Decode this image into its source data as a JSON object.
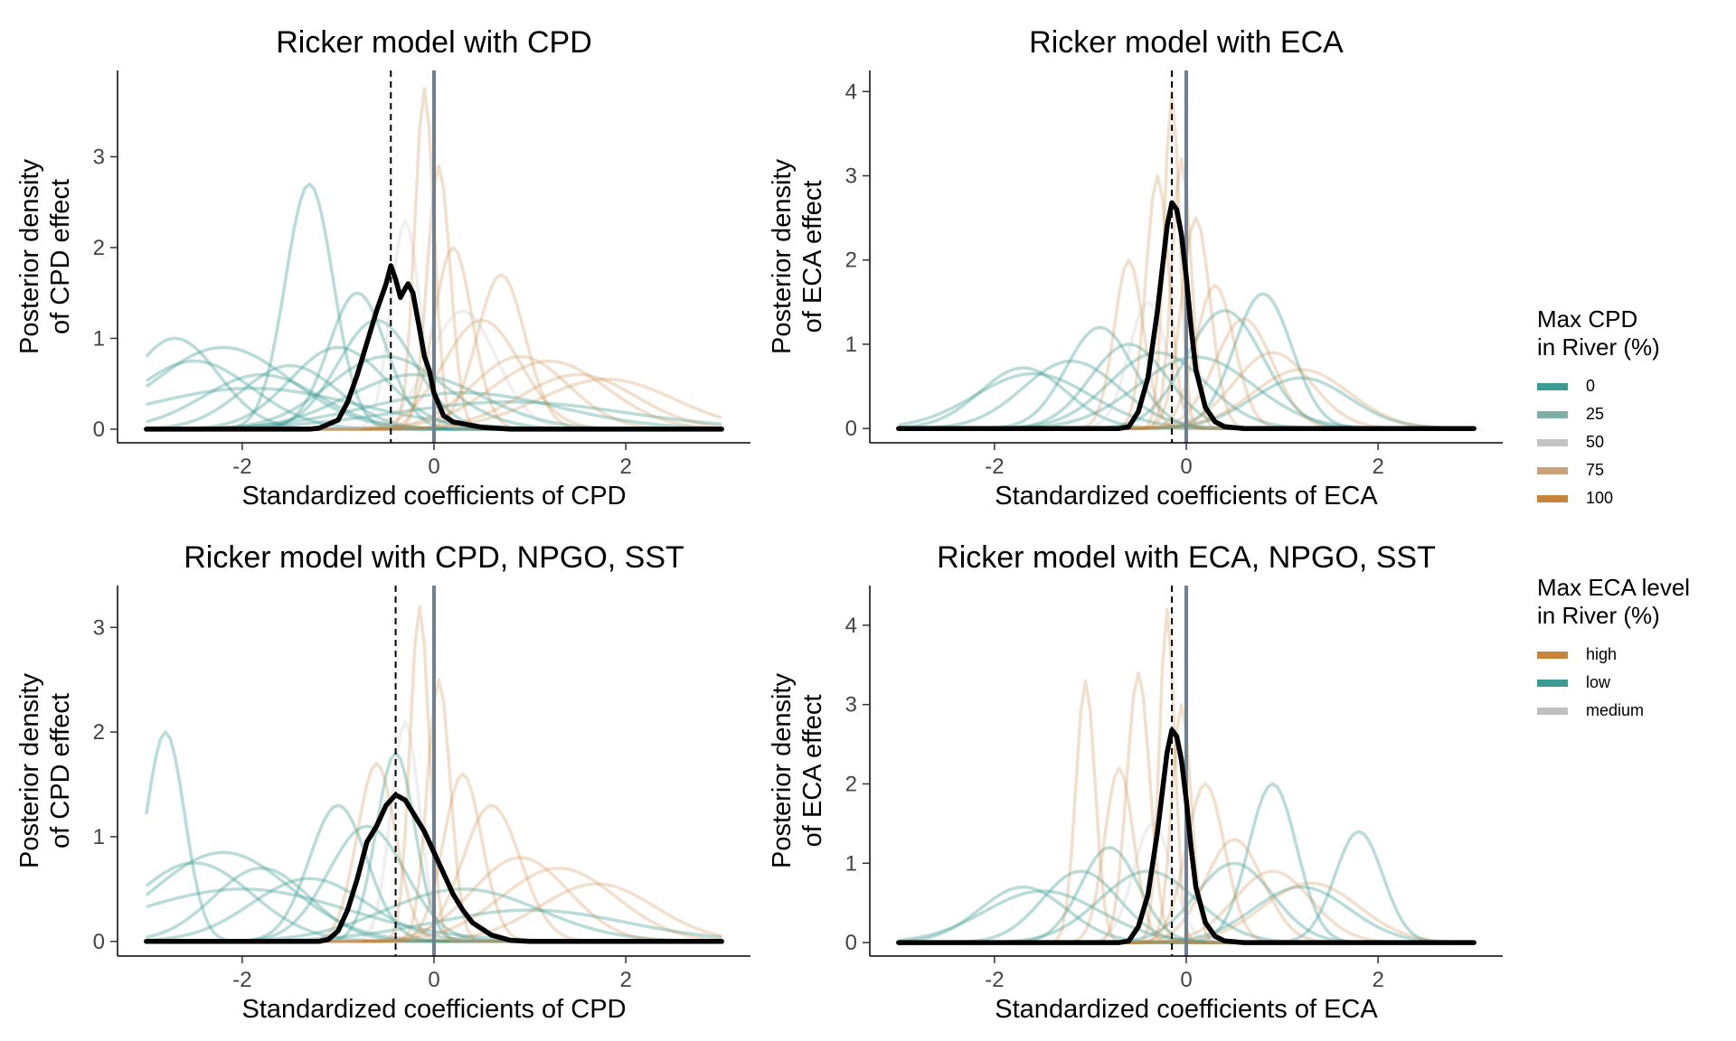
{
  "colors": {
    "teal": "#3a9b93",
    "tan": "#c8853a",
    "grey": "#c0c0c0",
    "posterior": "#000000",
    "zero_line": "#708090"
  },
  "legends": {
    "cpd": {
      "title": "Max CPD\nin River (%)",
      "items": [
        {
          "label": "0",
          "color": "#3a9b93"
        },
        {
          "label": "25",
          "color": "#7fb0a8"
        },
        {
          "label": "50",
          "color": "#c2c2c2"
        },
        {
          "label": "75",
          "color": "#c9a27c"
        },
        {
          "label": "100",
          "color": "#c8853a"
        }
      ]
    },
    "eca": {
      "title": "Max ECA level\nin River (%)",
      "items": [
        {
          "label": "high",
          "color": "#c8853a"
        },
        {
          "label": "low",
          "color": "#3a9b93"
        },
        {
          "label": "medium",
          "color": "#c0c0c0"
        }
      ]
    }
  },
  "chart_data": [
    {
      "type": "line",
      "title": "Ricker model with CPD",
      "xlabel": "Standardized coefficients of CPD",
      "ylabel": "Posterior density\nof CPD effect",
      "xlim": [
        -3.3,
        3.3
      ],
      "ylim": [
        -0.15,
        3.95
      ],
      "xticks": [
        -2,
        0,
        2
      ],
      "yticks": [
        0,
        1,
        2,
        3
      ],
      "zero_line_x": 0,
      "dashed_line_x": -0.45,
      "posterior": {
        "x": [
          -3,
          -1.3,
          -1.2,
          -1.0,
          -0.9,
          -0.8,
          -0.7,
          -0.6,
          -0.5,
          -0.45,
          -0.4,
          -0.35,
          -0.3,
          -0.27,
          -0.22,
          -0.15,
          -0.1,
          -0.05,
          0,
          0.1,
          0.2,
          0.3,
          0.5,
          0.8,
          3
        ],
        "y": [
          0,
          0,
          0.01,
          0.1,
          0.3,
          0.6,
          0.95,
          1.3,
          1.6,
          1.8,
          1.65,
          1.45,
          1.55,
          1.6,
          1.5,
          1.1,
          0.8,
          0.65,
          0.4,
          0.15,
          0.08,
          0.06,
          0.02,
          0,
          0
        ]
      },
      "series": [
        {
          "group": "low",
          "peak": -2.5,
          "width": 0.6,
          "height": 0.75
        },
        {
          "group": "low",
          "peak": -2.7,
          "width": 0.45,
          "height": 1.0
        },
        {
          "group": "low",
          "peak": -2.2,
          "width": 0.7,
          "height": 0.9
        },
        {
          "group": "low",
          "peak": -1.8,
          "width": 0.6,
          "height": 0.6
        },
        {
          "group": "low",
          "peak": -1.5,
          "width": 0.5,
          "height": 0.7
        },
        {
          "group": "low",
          "peak": -1.3,
          "width": 0.25,
          "height": 2.7
        },
        {
          "group": "low",
          "peak": -1.0,
          "width": 0.5,
          "height": 0.9
        },
        {
          "group": "low",
          "peak": -0.8,
          "width": 0.3,
          "height": 1.5
        },
        {
          "group": "low",
          "peak": -0.5,
          "width": 0.6,
          "height": 0.8
        },
        {
          "group": "low",
          "peak": -0.2,
          "width": 0.7,
          "height": 0.6
        },
        {
          "group": "low",
          "peak": 0.3,
          "width": 1.0,
          "height": 0.4
        },
        {
          "group": "low",
          "peak": 0.8,
          "width": 1.2,
          "height": 0.3
        },
        {
          "group": "low",
          "peak": -1.9,
          "width": 1.1,
          "height": 0.45
        },
        {
          "group": "low",
          "peak": -0.6,
          "width": 0.4,
          "height": 1.2
        },
        {
          "group": "high",
          "peak": -0.1,
          "width": 0.1,
          "height": 3.75
        },
        {
          "group": "high",
          "peak": 0.05,
          "width": 0.12,
          "height": 2.9
        },
        {
          "group": "high",
          "peak": 0.2,
          "width": 0.2,
          "height": 2.0
        },
        {
          "group": "high",
          "peak": 0.5,
          "width": 0.4,
          "height": 1.2
        },
        {
          "group": "high",
          "peak": 0.9,
          "width": 0.5,
          "height": 0.8
        },
        {
          "group": "high",
          "peak": 1.2,
          "width": 0.6,
          "height": 0.75
        },
        {
          "group": "high",
          "peak": 1.5,
          "width": 0.6,
          "height": 0.6
        },
        {
          "group": "high",
          "peak": 1.8,
          "width": 0.7,
          "height": 0.55
        },
        {
          "group": "high",
          "peak": 0.7,
          "width": 0.25,
          "height": 1.7
        },
        {
          "group": "medium",
          "peak": -0.3,
          "width": 0.15,
          "height": 2.3
        },
        {
          "group": "medium",
          "peak": 0.3,
          "width": 0.35,
          "height": 1.3
        }
      ]
    },
    {
      "type": "line",
      "title": "Ricker model with ECA",
      "xlabel": "Standardized coefficients of ECA",
      "ylabel": "Posterior density\nof ECA effect",
      "xlim": [
        -3.3,
        3.3
      ],
      "ylim": [
        -0.17,
        4.25
      ],
      "xticks": [
        -2,
        0,
        2
      ],
      "yticks": [
        0,
        1,
        2,
        3,
        4
      ],
      "zero_line_x": 0,
      "dashed_line_x": -0.15,
      "posterior": {
        "x": [
          -3,
          -0.7,
          -0.6,
          -0.5,
          -0.4,
          -0.3,
          -0.2,
          -0.15,
          -0.1,
          -0.05,
          0,
          0.05,
          0.1,
          0.2,
          0.3,
          0.4,
          0.6,
          3
        ],
        "y": [
          0,
          0,
          0.02,
          0.2,
          0.6,
          1.4,
          2.4,
          2.68,
          2.6,
          2.3,
          1.8,
          1.2,
          0.7,
          0.25,
          0.08,
          0.02,
          0,
          0
        ]
      },
      "series": [
        {
          "group": "low",
          "peak": -1.7,
          "width": 0.45,
          "height": 0.72
        },
        {
          "group": "low",
          "peak": -1.6,
          "width": 0.6,
          "height": 0.65
        },
        {
          "group": "low",
          "peak": -1.2,
          "width": 0.5,
          "height": 0.8
        },
        {
          "group": "low",
          "peak": -0.9,
          "width": 0.35,
          "height": 1.2
        },
        {
          "group": "low",
          "peak": -0.6,
          "width": 0.4,
          "height": 1.0
        },
        {
          "group": "low",
          "peak": -0.3,
          "width": 0.5,
          "height": 0.9
        },
        {
          "group": "low",
          "peak": 0.4,
          "width": 0.4,
          "height": 1.4
        },
        {
          "group": "low",
          "peak": 0.8,
          "width": 0.3,
          "height": 1.6
        },
        {
          "group": "low",
          "peak": 1.2,
          "width": 0.5,
          "height": 0.6
        },
        {
          "group": "low",
          "peak": 0.1,
          "width": 0.6,
          "height": 0.85
        },
        {
          "group": "high",
          "peak": -0.15,
          "width": 0.08,
          "height": 4.0
        },
        {
          "group": "high",
          "peak": -0.05,
          "width": 0.1,
          "height": 3.2
        },
        {
          "group": "high",
          "peak": -0.3,
          "width": 0.12,
          "height": 3.0
        },
        {
          "group": "high",
          "peak": -0.6,
          "width": 0.15,
          "height": 2.0
        },
        {
          "group": "high",
          "peak": 0.1,
          "width": 0.15,
          "height": 2.5
        },
        {
          "group": "high",
          "peak": 0.3,
          "width": 0.2,
          "height": 1.7
        },
        {
          "group": "high",
          "peak": 0.6,
          "width": 0.3,
          "height": 1.3
        },
        {
          "group": "high",
          "peak": 0.9,
          "width": 0.4,
          "height": 0.9
        },
        {
          "group": "high",
          "peak": 1.2,
          "width": 0.5,
          "height": 0.7
        },
        {
          "group": "medium",
          "peak": -0.4,
          "width": 0.2,
          "height": 1.5
        }
      ]
    },
    {
      "type": "line",
      "title": "Ricker model with CPD, NPGO, SST",
      "xlabel": "Standardized coefficients of CPD",
      "ylabel": "Posterior density\nof CPD effect",
      "xlim": [
        -3.3,
        3.3
      ],
      "ylim": [
        -0.14,
        3.4
      ],
      "xticks": [
        -2,
        0,
        2
      ],
      "yticks": [
        0,
        1,
        2,
        3
      ],
      "zero_line_x": 0,
      "dashed_line_x": -0.4,
      "posterior": {
        "x": [
          -3,
          -1.2,
          -1.1,
          -1.0,
          -0.9,
          -0.8,
          -0.7,
          -0.6,
          -0.5,
          -0.4,
          -0.3,
          -0.2,
          -0.1,
          0,
          0.1,
          0.2,
          0.3,
          0.4,
          0.6,
          0.8,
          1.0,
          3
        ],
        "y": [
          0,
          0,
          0.02,
          0.1,
          0.3,
          0.6,
          0.95,
          1.1,
          1.3,
          1.4,
          1.35,
          1.2,
          1.05,
          0.85,
          0.65,
          0.45,
          0.3,
          0.18,
          0.06,
          0.01,
          0,
          0
        ]
      },
      "series": [
        {
          "group": "low",
          "peak": -2.5,
          "width": 0.6,
          "height": 0.75
        },
        {
          "group": "low",
          "peak": -2.8,
          "width": 0.2,
          "height": 2.0
        },
        {
          "group": "low",
          "peak": -2.2,
          "width": 0.7,
          "height": 0.85
        },
        {
          "group": "low",
          "peak": -1.8,
          "width": 0.5,
          "height": 0.7
        },
        {
          "group": "low",
          "peak": -1.3,
          "width": 0.6,
          "height": 0.6
        },
        {
          "group": "low",
          "peak": -1.0,
          "width": 0.3,
          "height": 1.3
        },
        {
          "group": "low",
          "peak": -0.7,
          "width": 0.4,
          "height": 1.1
        },
        {
          "group": "low",
          "peak": -0.4,
          "width": 0.2,
          "height": 1.8
        },
        {
          "group": "low",
          "peak": 0.3,
          "width": 0.8,
          "height": 0.5
        },
        {
          "group": "low",
          "peak": 1.0,
          "width": 1.0,
          "height": 0.3
        },
        {
          "group": "low",
          "peak": -2.0,
          "width": 1.1,
          "height": 0.5
        },
        {
          "group": "high",
          "peak": -0.15,
          "width": 0.1,
          "height": 3.2
        },
        {
          "group": "high",
          "peak": 0.05,
          "width": 0.12,
          "height": 2.5
        },
        {
          "group": "high",
          "peak": 0.3,
          "width": 0.2,
          "height": 1.6
        },
        {
          "group": "high",
          "peak": 0.6,
          "width": 0.3,
          "height": 1.3
        },
        {
          "group": "high",
          "peak": 0.9,
          "width": 0.5,
          "height": 0.8
        },
        {
          "group": "high",
          "peak": 1.3,
          "width": 0.6,
          "height": 0.7
        },
        {
          "group": "high",
          "peak": 1.7,
          "width": 0.6,
          "height": 0.55
        },
        {
          "group": "high",
          "peak": -0.6,
          "width": 0.2,
          "height": 1.7
        },
        {
          "group": "medium",
          "peak": -0.3,
          "width": 0.15,
          "height": 2.1
        }
      ]
    },
    {
      "type": "line",
      "title": "Ricker model with ECA, NPGO, SST",
      "xlabel": "Standardized coefficients of ECA",
      "ylabel": "Posterior density\nof ECA effect",
      "xlim": [
        -3.3,
        3.3
      ],
      "ylim": [
        -0.17,
        4.5
      ],
      "xticks": [
        -2,
        0,
        2
      ],
      "yticks": [
        0,
        1,
        2,
        3,
        4
      ],
      "zero_line_x": 0,
      "dashed_line_x": -0.15,
      "posterior": {
        "x": [
          -3,
          -0.7,
          -0.6,
          -0.5,
          -0.4,
          -0.3,
          -0.2,
          -0.15,
          -0.1,
          -0.05,
          0,
          0.05,
          0.1,
          0.2,
          0.3,
          0.4,
          0.6,
          3
        ],
        "y": [
          0,
          0,
          0.02,
          0.2,
          0.6,
          1.4,
          2.4,
          2.68,
          2.6,
          2.3,
          1.8,
          1.2,
          0.7,
          0.25,
          0.08,
          0.02,
          0,
          0
        ]
      },
      "series": [
        {
          "group": "low",
          "peak": -1.7,
          "width": 0.45,
          "height": 0.7
        },
        {
          "group": "low",
          "peak": -1.5,
          "width": 0.6,
          "height": 0.65
        },
        {
          "group": "low",
          "peak": -1.1,
          "width": 0.4,
          "height": 0.9
        },
        {
          "group": "low",
          "peak": -0.8,
          "width": 0.3,
          "height": 1.2
        },
        {
          "group": "low",
          "peak": -0.4,
          "width": 0.5,
          "height": 0.9
        },
        {
          "group": "low",
          "peak": 0.5,
          "width": 0.4,
          "height": 1.0
        },
        {
          "group": "low",
          "peak": 0.9,
          "width": 0.25,
          "height": 2.0
        },
        {
          "group": "low",
          "peak": 1.8,
          "width": 0.25,
          "height": 1.4
        },
        {
          "group": "low",
          "peak": 1.2,
          "width": 0.5,
          "height": 0.7
        },
        {
          "group": "high",
          "peak": -1.05,
          "width": 0.1,
          "height": 3.3
        },
        {
          "group": "high",
          "peak": -0.5,
          "width": 0.12,
          "height": 3.4
        },
        {
          "group": "high",
          "peak": -0.2,
          "width": 0.08,
          "height": 4.2
        },
        {
          "group": "high",
          "peak": -0.05,
          "width": 0.1,
          "height": 3.0
        },
        {
          "group": "high",
          "peak": -0.7,
          "width": 0.15,
          "height": 2.2
        },
        {
          "group": "high",
          "peak": 0.2,
          "width": 0.2,
          "height": 2.0
        },
        {
          "group": "high",
          "peak": 0.5,
          "width": 0.3,
          "height": 1.3
        },
        {
          "group": "high",
          "peak": 0.9,
          "width": 0.4,
          "height": 0.9
        },
        {
          "group": "high",
          "peak": 1.3,
          "width": 0.5,
          "height": 0.75
        },
        {
          "group": "medium",
          "peak": -0.35,
          "width": 0.2,
          "height": 1.5
        }
      ]
    }
  ]
}
